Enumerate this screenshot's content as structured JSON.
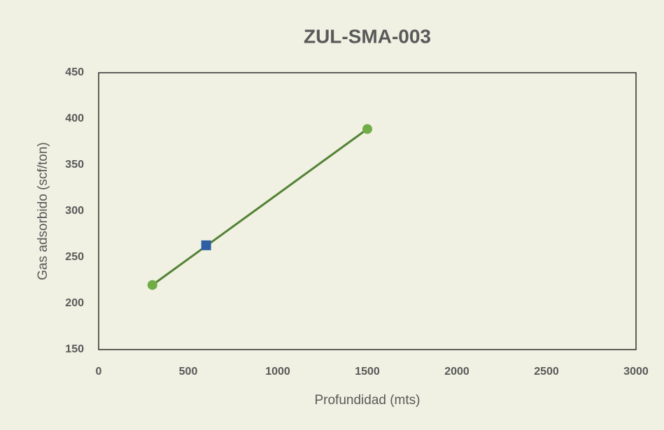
{
  "chart_data": {
    "type": "scatter",
    "title": "ZUL-SMA-003",
    "xlabel": "Profundidad (mts)",
    "ylabel": "Gas adsorbido (scf/ton)",
    "xlim": [
      0,
      3000
    ],
    "xticks": [
      0,
      500,
      1000,
      1500,
      2000,
      2500,
      3000
    ],
    "ylim": [
      150,
      450
    ],
    "yticks": [
      150,
      200,
      250,
      300,
      350,
      400,
      450
    ],
    "grid": false,
    "series": [
      {
        "color": "#70ad47",
        "line_color": "#548235",
        "marker": "circle",
        "line": true,
        "x": [
          300,
          1500
        ],
        "values": [
          220,
          389
        ]
      },
      {
        "color": "#2e5fa3",
        "marker": "square",
        "line": false,
        "x": [
          600
        ],
        "values": [
          263
        ]
      }
    ]
  }
}
